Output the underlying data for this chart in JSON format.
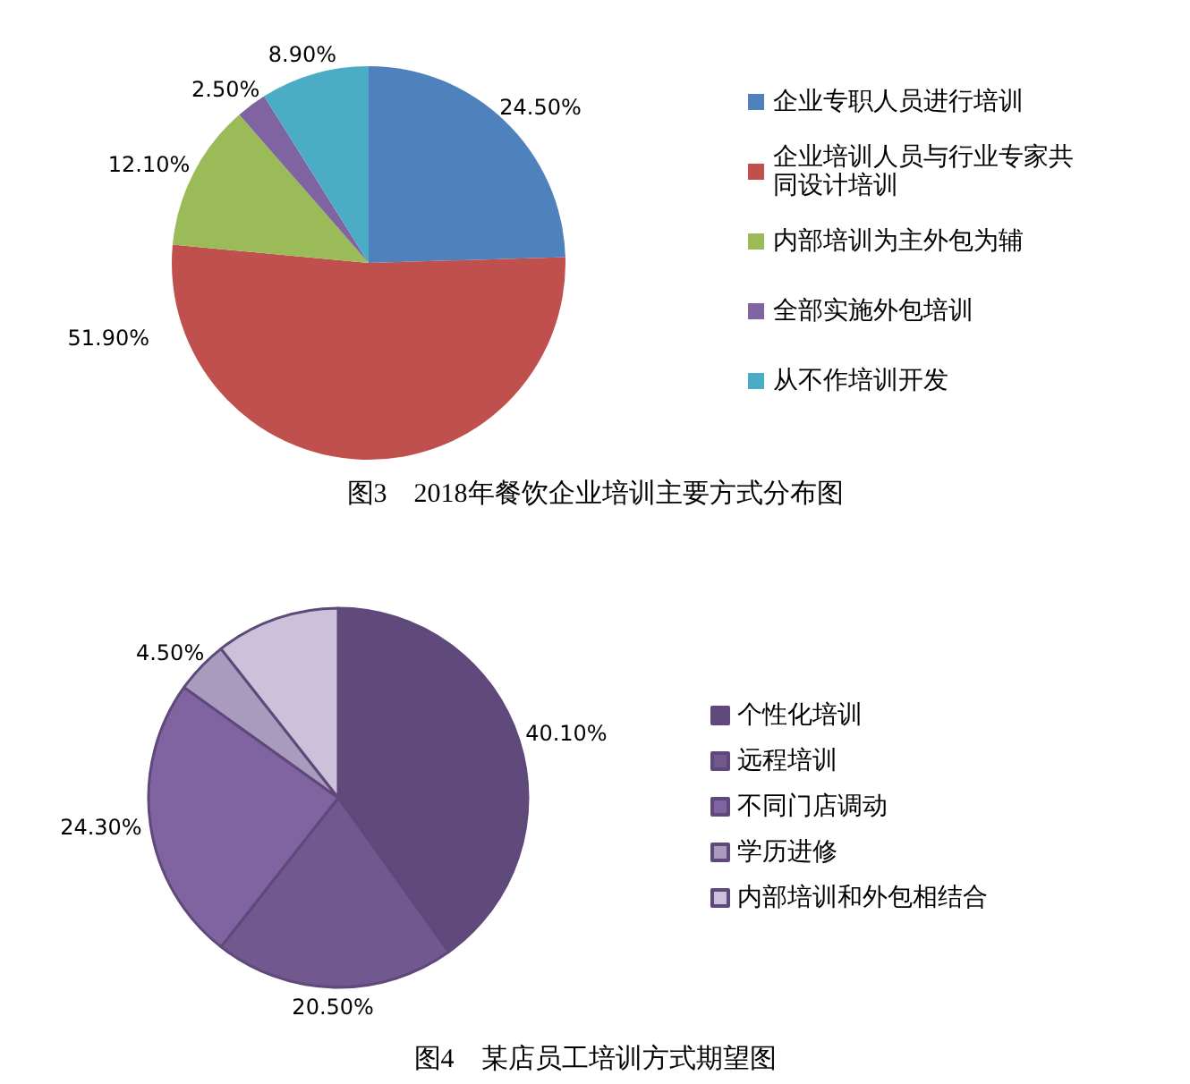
{
  "chart_data": [
    {
      "type": "pie",
      "title": "图3　2018年餐饮企业培训主要方式分布图",
      "categories": [
        "企业专职人员进行培训",
        "企业培训人员与行业专家共同设计培训",
        "内部培训为主外包为辅",
        "全部实施外包培训",
        "从不作培训开发"
      ],
      "values": [
        24.5,
        51.9,
        12.1,
        2.5,
        8.9
      ],
      "colors": [
        "#4f81bd",
        "#c0504d",
        "#9bbb59",
        "#8064a2",
        "#4bacc6"
      ],
      "value_labels": [
        "24.50%",
        "51.90%",
        "12.10%",
        "2.50%",
        "8.90%"
      ],
      "legend": "right"
    },
    {
      "type": "pie",
      "title": "图4　某店员工培训方式期望图",
      "categories": [
        "个性化培训",
        "远程培训",
        "不同门店调动",
        "学历进修",
        "内部培训和外包相结合"
      ],
      "values": [
        40.1,
        20.5,
        24.3,
        4.5,
        10.6
      ],
      "colors": [
        "#604a7b",
        "#71588f",
        "#8064a2",
        "#a99bbd",
        "#ccc1da"
      ],
      "value_labels": [
        "40.10%",
        "20.50%",
        "24.30%",
        "4.50%",
        null
      ],
      "legend": "right"
    }
  ]
}
